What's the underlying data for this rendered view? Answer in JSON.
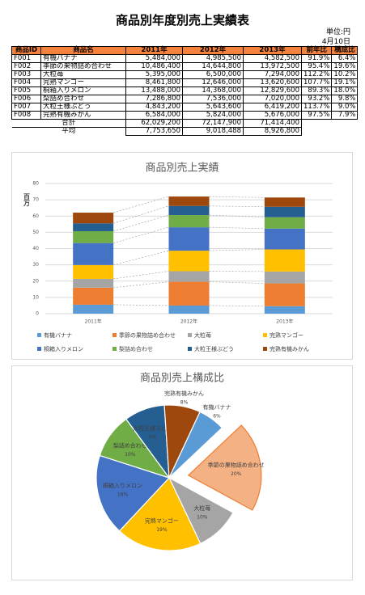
{
  "header": {
    "title": "商品別年度別売上実績表",
    "unit": "単位:円",
    "date": "4月10日"
  },
  "table": {
    "columns": [
      "商品ID",
      "商品名",
      "2011年",
      "2012年",
      "2013年",
      "前年比",
      "構成比"
    ],
    "rows": [
      [
        "F001",
        "有機バナナ",
        "5,484,000",
        "4,985,500",
        "4,582,500",
        "91.9%",
        "6.4%"
      ],
      [
        "F002",
        "季節の果物詰め合わせ",
        "10,486,400",
        "14,644,800",
        "13,972,500",
        "95.4%",
        "19.6%"
      ],
      [
        "F003",
        "大粒苺",
        "5,395,000",
        "6,500,000",
        "7,294,000",
        "112.2%",
        "10.2%"
      ],
      [
        "F004",
        "完熟マンゴー",
        "8,461,800",
        "12,646,000",
        "13,620,600",
        "107.7%",
        "19.1%"
      ],
      [
        "F005",
        "桐箱入りメロン",
        "13,488,000",
        "14,368,000",
        "12,829,600",
        "89.3%",
        "18.0%"
      ],
      [
        "F006",
        "梨詰め合わせ",
        "7,286,800",
        "7,536,000",
        "7,020,000",
        "93.2%",
        "9.8%"
      ],
      [
        "F007",
        "大粒王様ぶどう",
        "4,843,200",
        "5,643,600",
        "6,419,200",
        "113.7%",
        "9.0%"
      ],
      [
        "F008",
        "完熟有機みかん",
        "6,584,000",
        "5,824,000",
        "5,676,000",
        "97.5%",
        "7.9%"
      ]
    ],
    "summary": [
      [
        "合計",
        "62,029,200",
        "72,147,900",
        "71,414,400"
      ],
      [
        "平均",
        "7,753,650",
        "9,018,488",
        "8,926,800"
      ]
    ]
  },
  "chart_data": [
    {
      "type": "stacked_bar",
      "title": "商品別売上実績",
      "y_label": "百万",
      "categories": [
        "2011年",
        "2012年",
        "2013年"
      ],
      "ylim": [
        0,
        80
      ],
      "yticks": [
        0,
        10,
        20,
        30,
        40,
        50,
        60,
        70,
        80
      ],
      "grid": true,
      "series": [
        {
          "name": "有機バナナ",
          "color": "#5b9bd5",
          "values": [
            5.5,
            5.0,
            4.6
          ]
        },
        {
          "name": "季節の果物詰め合わせ",
          "color": "#ed7d31",
          "values": [
            10.5,
            14.6,
            14.0
          ]
        },
        {
          "name": "大粒苺",
          "color": "#a5a5a5",
          "values": [
            5.4,
            6.5,
            7.3
          ]
        },
        {
          "name": "完熟マンゴー",
          "color": "#ffc000",
          "values": [
            8.5,
            12.6,
            13.6
          ]
        },
        {
          "name": "桐箱入りメロン",
          "color": "#4472c4",
          "values": [
            13.5,
            14.4,
            12.8
          ]
        },
        {
          "name": "梨詰め合わせ",
          "color": "#70ad47",
          "values": [
            7.3,
            7.5,
            7.0
          ]
        },
        {
          "name": "大粒王様ぶどう",
          "color": "#255e91",
          "values": [
            4.8,
            5.6,
            6.4
          ]
        },
        {
          "name": "完熟有機みかん",
          "color": "#9e480e",
          "values": [
            6.6,
            5.8,
            5.7
          ]
        }
      ]
    },
    {
      "type": "pie",
      "title": "商品別売上構成比",
      "categories": [
        "有機バナナ",
        "季節の果物詰め合わせ",
        "大粒苺",
        "完熟マンゴー",
        "桐箱入りメロン",
        "梨詰め合わせ",
        "大粒王様ぶどう",
        "完熟有機みかん"
      ],
      "values": [
        6,
        20,
        10,
        19,
        18,
        10,
        9,
        8
      ],
      "value_labels": [
        "6%",
        "20%",
        "10%",
        "19%",
        "18%",
        "10%",
        "9%",
        "8%"
      ],
      "colors": [
        "#5b9bd5",
        "#f4b183",
        "#a5a5a5",
        "#ffc000",
        "#4472c4",
        "#70ad47",
        "#255e91",
        "#9e480e"
      ]
    }
  ]
}
